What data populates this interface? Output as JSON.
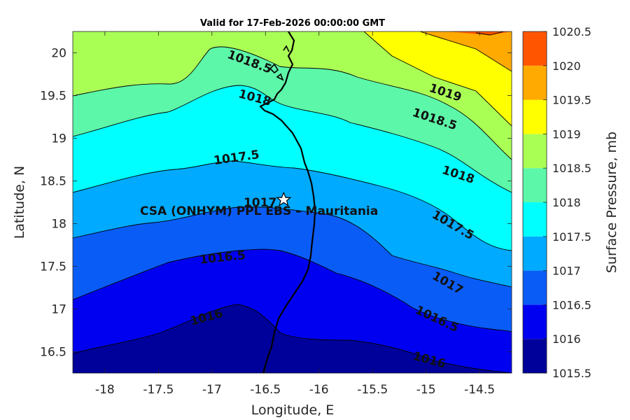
{
  "chart_data": {
    "type": "contour-map",
    "title": "Valid for 17-Feb-2026 00:00:00 GMT",
    "xlabel": "Longitude, E",
    "ylabel": "Latitude, N",
    "xlim": [
      -18.3,
      -14.2
    ],
    "ylim": [
      16.25,
      20.25
    ],
    "xticks": [
      "-18",
      "-17.5",
      "-17",
      "-16.5",
      "-16",
      "-15.5",
      "-15",
      "-14.5"
    ],
    "xtick_values": [
      -18,
      -17.5,
      -17,
      -16.5,
      -16,
      -15.5,
      -15,
      -14.5
    ],
    "yticks": [
      "20",
      "19.5",
      "19",
      "18.5",
      "18",
      "17.5",
      "17",
      "16.5"
    ],
    "ytick_values": [
      20,
      19.5,
      19,
      18.5,
      18,
      17.5,
      17,
      16.5
    ],
    "colorbar": {
      "label": "Surface Pressure, mb",
      "levels": [
        1015.5,
        1016,
        1016.5,
        1017,
        1017.5,
        1018,
        1018.5,
        1019,
        1019.5,
        1020,
        1020.5
      ],
      "tick_labels": [
        "1020.5",
        "1020",
        "1019.5",
        "1019",
        "1018.5",
        "1018",
        "1017.5",
        "1017",
        "1016.5",
        "1016",
        "1015.5"
      ],
      "colors": [
        "#00009a",
        "#0000f0",
        "#0a5cf7",
        "#00aaff",
        "#00ffff",
        "#5cf7a8",
        "#aaff55",
        "#ffff00",
        "#ffaa00",
        "#ff5500",
        "#ff0000"
      ]
    },
    "contour_labels": [
      {
        "text": "1018.5",
        "lon": -16.65,
        "lat": 19.89,
        "angle": 20
      },
      {
        "text": "1018",
        "lon": -16.6,
        "lat": 19.47,
        "angle": 15
      },
      {
        "text": "1019",
        "lon": -14.82,
        "lat": 19.53,
        "angle": 18
      },
      {
        "text": "1018.5",
        "lon": -14.92,
        "lat": 19.22,
        "angle": 18
      },
      {
        "text": "1017.5",
        "lon": -16.77,
        "lat": 18.77,
        "angle": -8
      },
      {
        "text": "1018",
        "lon": -14.7,
        "lat": 18.57,
        "angle": 18
      },
      {
        "text": "1017",
        "lon": -16.55,
        "lat": 18.24,
        "angle": 0
      },
      {
        "text": "1017.5",
        "lon": -14.75,
        "lat": 17.98,
        "angle": 30
      },
      {
        "text": "1016.5",
        "lon": -16.9,
        "lat": 17.6,
        "angle": -6
      },
      {
        "text": "1017",
        "lon": -14.8,
        "lat": 17.3,
        "angle": 30
      },
      {
        "text": "1016",
        "lon": -17.05,
        "lat": 16.9,
        "angle": -15
      },
      {
        "text": "1016.5",
        "lon": -14.9,
        "lat": 16.88,
        "angle": 25
      },
      {
        "text": "1016",
        "lon": -14.97,
        "lat": 16.4,
        "angle": 15
      }
    ],
    "site": {
      "label": "CSA (ONHYM) PPL EBS  – Mauritania",
      "lon": -16.33,
      "lat": 18.28
    }
  }
}
